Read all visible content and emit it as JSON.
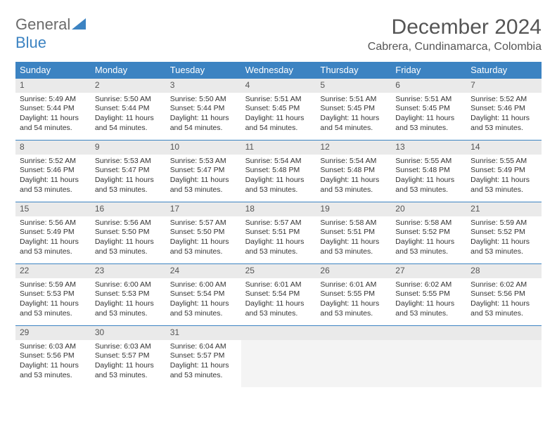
{
  "logo": {
    "text1": "General",
    "text2": "Blue"
  },
  "title": "December 2024",
  "location": "Cabrera, Cundinamarca, Colombia",
  "colors": {
    "accent": "#3c83c2",
    "header_bg": "#3c83c2",
    "header_text": "#ffffff",
    "daynum_bg": "#eaeaea",
    "text": "#333333",
    "title_text": "#555555"
  },
  "day_headers": [
    "Sunday",
    "Monday",
    "Tuesday",
    "Wednesday",
    "Thursday",
    "Friday",
    "Saturday"
  ],
  "days": [
    {
      "n": "1",
      "sr": "Sunrise: 5:49 AM",
      "ss": "Sunset: 5:44 PM",
      "d1": "Daylight: 11 hours",
      "d2": "and 54 minutes."
    },
    {
      "n": "2",
      "sr": "Sunrise: 5:50 AM",
      "ss": "Sunset: 5:44 PM",
      "d1": "Daylight: 11 hours",
      "d2": "and 54 minutes."
    },
    {
      "n": "3",
      "sr": "Sunrise: 5:50 AM",
      "ss": "Sunset: 5:44 PM",
      "d1": "Daylight: 11 hours",
      "d2": "and 54 minutes."
    },
    {
      "n": "4",
      "sr": "Sunrise: 5:51 AM",
      "ss": "Sunset: 5:45 PM",
      "d1": "Daylight: 11 hours",
      "d2": "and 54 minutes."
    },
    {
      "n": "5",
      "sr": "Sunrise: 5:51 AM",
      "ss": "Sunset: 5:45 PM",
      "d1": "Daylight: 11 hours",
      "d2": "and 54 minutes."
    },
    {
      "n": "6",
      "sr": "Sunrise: 5:51 AM",
      "ss": "Sunset: 5:45 PM",
      "d1": "Daylight: 11 hours",
      "d2": "and 53 minutes."
    },
    {
      "n": "7",
      "sr": "Sunrise: 5:52 AM",
      "ss": "Sunset: 5:46 PM",
      "d1": "Daylight: 11 hours",
      "d2": "and 53 minutes."
    },
    {
      "n": "8",
      "sr": "Sunrise: 5:52 AM",
      "ss": "Sunset: 5:46 PM",
      "d1": "Daylight: 11 hours",
      "d2": "and 53 minutes."
    },
    {
      "n": "9",
      "sr": "Sunrise: 5:53 AM",
      "ss": "Sunset: 5:47 PM",
      "d1": "Daylight: 11 hours",
      "d2": "and 53 minutes."
    },
    {
      "n": "10",
      "sr": "Sunrise: 5:53 AM",
      "ss": "Sunset: 5:47 PM",
      "d1": "Daylight: 11 hours",
      "d2": "and 53 minutes."
    },
    {
      "n": "11",
      "sr": "Sunrise: 5:54 AM",
      "ss": "Sunset: 5:48 PM",
      "d1": "Daylight: 11 hours",
      "d2": "and 53 minutes."
    },
    {
      "n": "12",
      "sr": "Sunrise: 5:54 AM",
      "ss": "Sunset: 5:48 PM",
      "d1": "Daylight: 11 hours",
      "d2": "and 53 minutes."
    },
    {
      "n": "13",
      "sr": "Sunrise: 5:55 AM",
      "ss": "Sunset: 5:48 PM",
      "d1": "Daylight: 11 hours",
      "d2": "and 53 minutes."
    },
    {
      "n": "14",
      "sr": "Sunrise: 5:55 AM",
      "ss": "Sunset: 5:49 PM",
      "d1": "Daylight: 11 hours",
      "d2": "and 53 minutes."
    },
    {
      "n": "15",
      "sr": "Sunrise: 5:56 AM",
      "ss": "Sunset: 5:49 PM",
      "d1": "Daylight: 11 hours",
      "d2": "and 53 minutes."
    },
    {
      "n": "16",
      "sr": "Sunrise: 5:56 AM",
      "ss": "Sunset: 5:50 PM",
      "d1": "Daylight: 11 hours",
      "d2": "and 53 minutes."
    },
    {
      "n": "17",
      "sr": "Sunrise: 5:57 AM",
      "ss": "Sunset: 5:50 PM",
      "d1": "Daylight: 11 hours",
      "d2": "and 53 minutes."
    },
    {
      "n": "18",
      "sr": "Sunrise: 5:57 AM",
      "ss": "Sunset: 5:51 PM",
      "d1": "Daylight: 11 hours",
      "d2": "and 53 minutes."
    },
    {
      "n": "19",
      "sr": "Sunrise: 5:58 AM",
      "ss": "Sunset: 5:51 PM",
      "d1": "Daylight: 11 hours",
      "d2": "and 53 minutes."
    },
    {
      "n": "20",
      "sr": "Sunrise: 5:58 AM",
      "ss": "Sunset: 5:52 PM",
      "d1": "Daylight: 11 hours",
      "d2": "and 53 minutes."
    },
    {
      "n": "21",
      "sr": "Sunrise: 5:59 AM",
      "ss": "Sunset: 5:52 PM",
      "d1": "Daylight: 11 hours",
      "d2": "and 53 minutes."
    },
    {
      "n": "22",
      "sr": "Sunrise: 5:59 AM",
      "ss": "Sunset: 5:53 PM",
      "d1": "Daylight: 11 hours",
      "d2": "and 53 minutes."
    },
    {
      "n": "23",
      "sr": "Sunrise: 6:00 AM",
      "ss": "Sunset: 5:53 PM",
      "d1": "Daylight: 11 hours",
      "d2": "and 53 minutes."
    },
    {
      "n": "24",
      "sr": "Sunrise: 6:00 AM",
      "ss": "Sunset: 5:54 PM",
      "d1": "Daylight: 11 hours",
      "d2": "and 53 minutes."
    },
    {
      "n": "25",
      "sr": "Sunrise: 6:01 AM",
      "ss": "Sunset: 5:54 PM",
      "d1": "Daylight: 11 hours",
      "d2": "and 53 minutes."
    },
    {
      "n": "26",
      "sr": "Sunrise: 6:01 AM",
      "ss": "Sunset: 5:55 PM",
      "d1": "Daylight: 11 hours",
      "d2": "and 53 minutes."
    },
    {
      "n": "27",
      "sr": "Sunrise: 6:02 AM",
      "ss": "Sunset: 5:55 PM",
      "d1": "Daylight: 11 hours",
      "d2": "and 53 minutes."
    },
    {
      "n": "28",
      "sr": "Sunrise: 6:02 AM",
      "ss": "Sunset: 5:56 PM",
      "d1": "Daylight: 11 hours",
      "d2": "and 53 minutes."
    },
    {
      "n": "29",
      "sr": "Sunrise: 6:03 AM",
      "ss": "Sunset: 5:56 PM",
      "d1": "Daylight: 11 hours",
      "d2": "and 53 minutes."
    },
    {
      "n": "30",
      "sr": "Sunrise: 6:03 AM",
      "ss": "Sunset: 5:57 PM",
      "d1": "Daylight: 11 hours",
      "d2": "and 53 minutes."
    },
    {
      "n": "31",
      "sr": "Sunrise: 6:04 AM",
      "ss": "Sunset: 5:57 PM",
      "d1": "Daylight: 11 hours",
      "d2": "and 53 minutes."
    }
  ],
  "trailing_empty": 4
}
